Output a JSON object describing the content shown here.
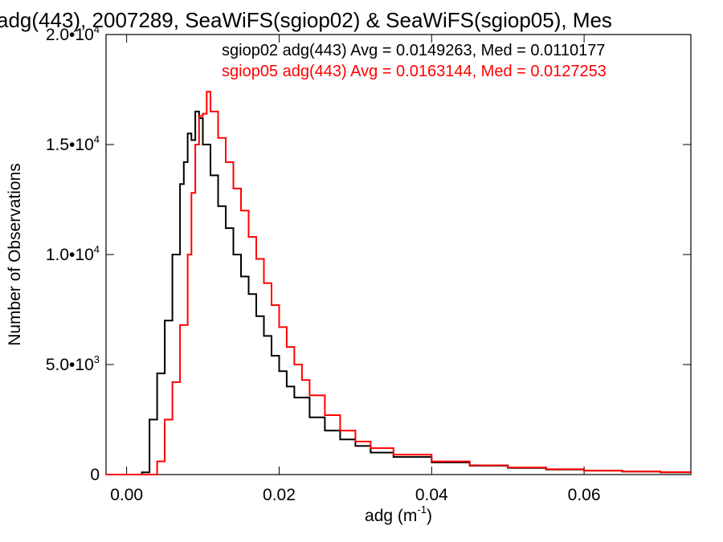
{
  "chart_data": {
    "type": "line",
    "title": "adg(443), 2007289, SeaWiFS(sgiop02) & SeaWiFS(sgiop05), Mes",
    "xlabel": "adg (m",
    "xlabel_exp": "-1",
    "xlabel_tail": ")",
    "ylabel": "Number of Observations",
    "xlim": [
      -0.0027,
      0.074
    ],
    "ylim": [
      0,
      20000
    ],
    "x_ticks": [
      {
        "value": 0.0,
        "label": "0.00"
      },
      {
        "value": 0.02,
        "label": "0.02"
      },
      {
        "value": 0.04,
        "label": "0.04"
      },
      {
        "value": 0.06,
        "label": "0.06"
      }
    ],
    "y_ticks": [
      {
        "value": 0,
        "label": "0",
        "exp": ""
      },
      {
        "value": 5000,
        "label": "5.0•10",
        "exp": "3"
      },
      {
        "value": 10000,
        "label": "1.0•10",
        "exp": "4"
      },
      {
        "value": 15000,
        "label": "1.5•10",
        "exp": "4"
      },
      {
        "value": 20000,
        "label": "2.0•10",
        "exp": "4"
      }
    ],
    "grid": false,
    "series": [
      {
        "name": "sgiop02 adg(443) Avg = 0.0149263, Med = 0.0110177",
        "color": "#000000",
        "points": [
          [
            -0.0027,
            0
          ],
          [
            0.0,
            0
          ],
          [
            0.002,
            100
          ],
          [
            0.003,
            2500
          ],
          [
            0.004,
            4600
          ],
          [
            0.005,
            7000
          ],
          [
            0.006,
            10000
          ],
          [
            0.007,
            13200
          ],
          [
            0.0075,
            14200
          ],
          [
            0.008,
            15500
          ],
          [
            0.0085,
            15200
          ],
          [
            0.009,
            16500
          ],
          [
            0.0095,
            16200
          ],
          [
            0.01,
            15000
          ],
          [
            0.011,
            13600
          ],
          [
            0.012,
            12200
          ],
          [
            0.013,
            11200
          ],
          [
            0.014,
            10000
          ],
          [
            0.015,
            9000
          ],
          [
            0.016,
            8200
          ],
          [
            0.017,
            7200
          ],
          [
            0.018,
            6300
          ],
          [
            0.019,
            5400
          ],
          [
            0.02,
            4700
          ],
          [
            0.021,
            4000
          ],
          [
            0.022,
            3500
          ],
          [
            0.024,
            2600
          ],
          [
            0.026,
            2000
          ],
          [
            0.028,
            1600
          ],
          [
            0.03,
            1300
          ],
          [
            0.032,
            1000
          ],
          [
            0.035,
            800
          ],
          [
            0.04,
            550
          ],
          [
            0.045,
            400
          ],
          [
            0.05,
            300
          ],
          [
            0.055,
            230
          ],
          [
            0.06,
            180
          ],
          [
            0.065,
            140
          ],
          [
            0.07,
            100
          ],
          [
            0.074,
            80
          ]
        ]
      },
      {
        "name": "sgiop05 adg(443) Avg = 0.0163144, Med = 0.0127253",
        "color": "#ff0000",
        "points": [
          [
            -0.0027,
            0
          ],
          [
            0.0025,
            0
          ],
          [
            0.004,
            600
          ],
          [
            0.005,
            2500
          ],
          [
            0.006,
            4200
          ],
          [
            0.007,
            6800
          ],
          [
            0.008,
            10000
          ],
          [
            0.0085,
            12800
          ],
          [
            0.009,
            15000
          ],
          [
            0.0095,
            16300
          ],
          [
            0.01,
            16400
          ],
          [
            0.0105,
            17400
          ],
          [
            0.011,
            16500
          ],
          [
            0.012,
            15300
          ],
          [
            0.013,
            14200
          ],
          [
            0.014,
            13000
          ],
          [
            0.015,
            12000
          ],
          [
            0.016,
            10800
          ],
          [
            0.017,
            9800
          ],
          [
            0.018,
            8700
          ],
          [
            0.019,
            7700
          ],
          [
            0.02,
            6700
          ],
          [
            0.021,
            5800
          ],
          [
            0.022,
            5000
          ],
          [
            0.023,
            4300
          ],
          [
            0.024,
            3600
          ],
          [
            0.026,
            2700
          ],
          [
            0.028,
            2000
          ],
          [
            0.03,
            1500
          ],
          [
            0.032,
            1200
          ],
          [
            0.035,
            900
          ],
          [
            0.04,
            600
          ],
          [
            0.045,
            420
          ],
          [
            0.05,
            320
          ],
          [
            0.055,
            240
          ],
          [
            0.06,
            180
          ],
          [
            0.065,
            140
          ],
          [
            0.07,
            110
          ],
          [
            0.074,
            80
          ]
        ]
      }
    ]
  }
}
